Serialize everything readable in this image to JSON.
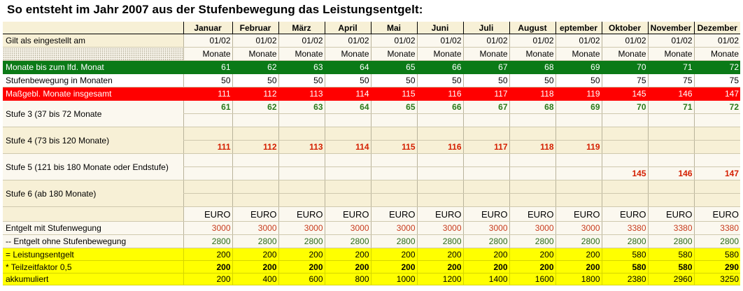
{
  "title": "So entsteht im Jahr 2007 aus der Stufenbewegung das Leistungsentgelt:",
  "months": [
    "Januar",
    "Februar",
    "März",
    "April",
    "Mai",
    "Juni",
    "Juli",
    "August",
    "eptember",
    "Oktober",
    "November",
    "Dezember"
  ],
  "rows": {
    "gilt": {
      "label": "Gilt als eingestellt am",
      "values": [
        "01/02",
        "01/02",
        "01/02",
        "01/02",
        "01/02",
        "01/02",
        "01/02",
        "01/02",
        "01/02",
        "01/02",
        "01/02",
        "01/02"
      ]
    },
    "einheit": {
      "label": "",
      "values": [
        "Monate",
        "Monate",
        "Monate",
        "Monate",
        "Monate",
        "Monate",
        "Monate",
        "Monate",
        "Monate",
        "Monate",
        "Monate",
        "Monate"
      ]
    },
    "monate_lfd": {
      "label": "Monate bis zum lfd. Monat",
      "values": [
        "61",
        "62",
        "63",
        "64",
        "65",
        "66",
        "67",
        "68",
        "69",
        "70",
        "71",
        "72"
      ]
    },
    "stufenbewegung": {
      "label": "Stufenbewegung in Monaten",
      "values": [
        "50",
        "50",
        "50",
        "50",
        "50",
        "50",
        "50",
        "50",
        "50",
        "75",
        "75",
        "75"
      ]
    },
    "massgebl": {
      "label": "Maßgebl. Monate insgesamt",
      "values": [
        "111",
        "112",
        "113",
        "114",
        "115",
        "116",
        "117",
        "118",
        "119",
        "145",
        "146",
        "147"
      ]
    },
    "stufe3": {
      "label": "Stufe 3 (37 bis 72 Monate",
      "values": [
        "61",
        "62",
        "63",
        "64",
        "65",
        "66",
        "67",
        "68",
        "69",
        "70",
        "71",
        "72"
      ]
    },
    "stufe4": {
      "label": "Stufe 4 (73 bis 120 Monate)",
      "values": [
        "111",
        "112",
        "113",
        "114",
        "115",
        "116",
        "117",
        "118",
        "119",
        "",
        "",
        ""
      ]
    },
    "stufe5": {
      "label": "Stufe 5 (121 bis 180 Monate oder Endstufe)",
      "values": [
        "",
        "",
        "",
        "",
        "",
        "",
        "",
        "",
        "",
        "145",
        "146",
        "147"
      ]
    },
    "stufe6": {
      "label": "Stufe 6 (ab 180 Monate)",
      "values": [
        "",
        "",
        "",
        "",
        "",
        "",
        "",
        "",
        "",
        "",
        "",
        ""
      ]
    },
    "euro": {
      "label": "",
      "values": [
        "EURO",
        "EURO",
        "EURO",
        "EURO",
        "EURO",
        "EURO",
        "EURO",
        "EURO",
        "EURO",
        "EURO",
        "EURO",
        "EURO"
      ]
    },
    "mit": {
      "label": "Entgelt mit Stufenwegung",
      "values": [
        "3000",
        "3000",
        "3000",
        "3000",
        "3000",
        "3000",
        "3000",
        "3000",
        "3000",
        "3380",
        "3380",
        "3380"
      ]
    },
    "ohne": {
      "label": "-- Entgelt ohne Stufenbewegung",
      "values": [
        "2800",
        "2800",
        "2800",
        "2800",
        "2800",
        "2800",
        "2800",
        "2800",
        "2800",
        "2800",
        "2800",
        "2800"
      ]
    },
    "leistung": {
      "label": "= Leistungsentgelt",
      "values": [
        "200",
        "200",
        "200",
        "200",
        "200",
        "200",
        "200",
        "200",
        "200",
        "580",
        "580",
        "580"
      ]
    },
    "teilzeit": {
      "label": "*  Teilzeitfaktor 0,5",
      "values": [
        "200",
        "200",
        "200",
        "200",
        "200",
        "200",
        "200",
        "200",
        "200",
        "580",
        "580",
        "290"
      ]
    },
    "akkumuliert": {
      "label": "akkumuliert",
      "values": [
        "200",
        "400",
        "600",
        "800",
        "1000",
        "1200",
        "1400",
        "1600",
        "1800",
        "2380",
        "2960",
        "3250"
      ]
    }
  },
  "colors": {
    "green_row": "#0b7a17",
    "red_row": "#ff0000",
    "yellow_row": "#ffff00",
    "green_text": "#2a7a1a",
    "red_text": "#d41e00"
  }
}
